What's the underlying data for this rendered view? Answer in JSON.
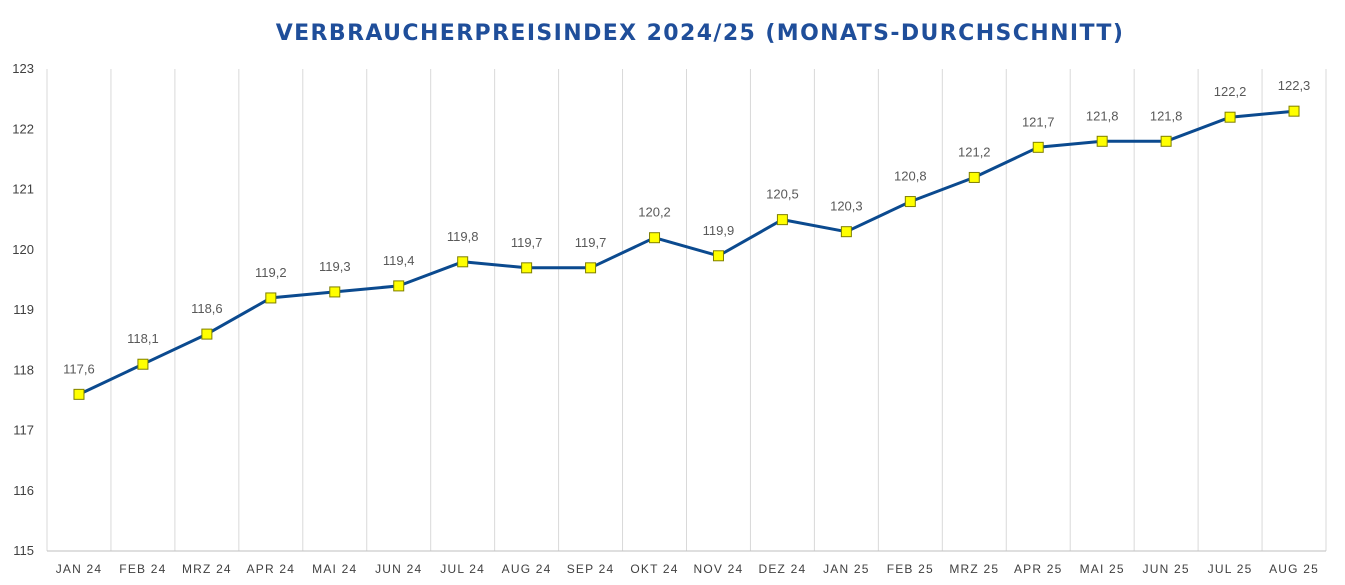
{
  "chart_data": {
    "type": "line",
    "title": "VERBRAUCHERPREISINDEX 2024/25 (MONATS-DURCHSCHNITT)",
    "categories": [
      "JAN 24",
      "FEB 24",
      "MRZ 24",
      "APR 24",
      "MAI 24",
      "JUN 24",
      "JUL 24",
      "AUG 24",
      "SEP 24",
      "OKT 24",
      "NOV 24",
      "DEZ 24",
      "JAN 25",
      "FEB 25",
      "MRZ 25",
      "APR 25",
      "MAI 25",
      "JUN 25",
      "JUL 25",
      "AUG 25"
    ],
    "series": [
      {
        "values": [
          117.6,
          118.1,
          118.6,
          119.2,
          119.3,
          119.4,
          119.8,
          119.7,
          119.7,
          120.2,
          119.9,
          120.5,
          120.3,
          120.8,
          121.2,
          121.7,
          121.8,
          121.8,
          122.2,
          122.3
        ],
        "data_labels": [
          "117,6",
          "118,1",
          "118,6",
          "119,2",
          "119,3",
          "119,4",
          "119,8",
          "119,7",
          "119,7",
          "120,2",
          "119,9",
          "120,5",
          "120,3",
          "120,8",
          "121,2",
          "121,7",
          "121,8",
          "121,8",
          "122,2",
          "122,3"
        ]
      }
    ],
    "ylim": [
      115,
      123
    ],
    "yticks": [
      115,
      116,
      117,
      118,
      119,
      120,
      121,
      122,
      123
    ],
    "xlabel": "",
    "ylabel": "",
    "grid": "vertical",
    "legend": "none",
    "colors": {
      "title": "#1F4E9A",
      "line": "#0B4A8F",
      "marker_fill": "#FFFF00",
      "marker_stroke": "#7F7F00",
      "grid": "#D9D9D9",
      "axis": "#BFBFBF"
    }
  }
}
